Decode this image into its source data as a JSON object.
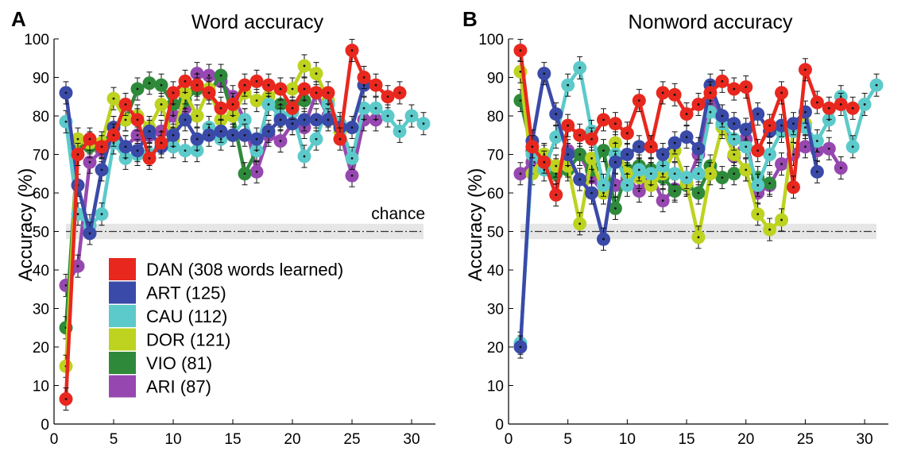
{
  "figure": {
    "legend_colors": {
      "DAN": "#e8281e",
      "ART": "#3a4aa8",
      "CAU": "#5ccaca",
      "DOR": "#bdd31f",
      "VIO": "#2e8a3a",
      "ARI": "#9648b0"
    },
    "legend": [
      {
        "id": "DAN",
        "label": "DAN (308 words learned)"
      },
      {
        "id": "ART",
        "label": "ART (125)"
      },
      {
        "id": "CAU",
        "label": "CAU (112)"
      },
      {
        "id": "DOR",
        "label": "DOR (121)"
      },
      {
        "id": "VIO",
        "label": "VIO (81)"
      },
      {
        "id": "ARI",
        "label": "ARI (87)"
      }
    ],
    "chance_label": "chance"
  },
  "chart_data": [
    {
      "type": "line",
      "panel": "A",
      "title": "Word accuracy",
      "xlabel": "",
      "ylabel": "Accuracy (%)",
      "xlim": [
        0,
        32
      ],
      "ylim": [
        0,
        100
      ],
      "xticks": [
        0,
        5,
        10,
        15,
        20,
        25,
        30
      ],
      "yticks": [
        0,
        10,
        20,
        30,
        40,
        50,
        60,
        70,
        80,
        90,
        100
      ],
      "chance": {
        "value": 50,
        "band": [
          48,
          52
        ]
      },
      "series": [
        {
          "id": "DAN",
          "x": [
            1,
            2,
            3,
            4,
            5,
            6,
            7,
            8,
            9,
            10,
            11,
            12,
            13,
            14,
            15,
            16,
            17,
            18,
            19,
            20,
            21,
            22,
            23,
            24,
            25,
            26,
            27,
            28,
            29
          ],
          "y": [
            6.5,
            70,
            74,
            72,
            75,
            83,
            79,
            69,
            73,
            86,
            89,
            88,
            86,
            82,
            83,
            88,
            89,
            88,
            87,
            82,
            87,
            86,
            86,
            74,
            97,
            90,
            88,
            85,
            86
          ]
        },
        {
          "id": "ART",
          "x": [
            1,
            2,
            3,
            4,
            5,
            6,
            7,
            8,
            9,
            10,
            11,
            12,
            13,
            14,
            15,
            16,
            17,
            18,
            19,
            20,
            21,
            22,
            23,
            24,
            25,
            26
          ],
          "y": [
            86,
            62,
            49.5,
            66,
            77,
            72,
            71,
            76,
            72,
            75,
            79,
            74,
            75,
            76,
            75,
            75,
            74,
            76,
            79,
            78,
            79,
            79,
            79,
            77,
            77,
            88
          ]
        },
        {
          "id": "CAU",
          "x": [
            1,
            2,
            3,
            4,
            5,
            6,
            7,
            8,
            9,
            10,
            11,
            12,
            13,
            14,
            15,
            16,
            17,
            18,
            19,
            20,
            21,
            22,
            23,
            24,
            25,
            26,
            27,
            28,
            29,
            30,
            31
          ],
          "y": [
            78.5,
            54.5,
            51.5,
            54.5,
            73,
            69,
            70,
            70,
            73,
            72,
            71,
            71,
            77,
            74,
            75,
            79,
            71,
            83,
            80,
            81,
            69.5,
            74,
            83,
            78,
            69,
            82,
            82,
            80,
            76,
            80,
            78
          ]
        },
        {
          "id": "DOR",
          "x": [
            1,
            2,
            3,
            4,
            5,
            6,
            7,
            8,
            9,
            10,
            11,
            12,
            13,
            14,
            15,
            16,
            17,
            18,
            19,
            20,
            21,
            22,
            23,
            24
          ],
          "y": [
            15,
            74,
            73,
            73,
            84.5,
            79,
            80,
            77,
            83,
            74,
            86,
            80,
            87,
            79,
            80,
            86,
            84,
            85,
            87,
            87,
            93,
            91,
            84,
            76
          ]
        },
        {
          "id": "VIO",
          "x": [
            1,
            2,
            3,
            4,
            5,
            6,
            7,
            8,
            9,
            10,
            11,
            12,
            13,
            14,
            15,
            16,
            17,
            18,
            19,
            20,
            21
          ],
          "y": [
            25,
            72,
            72,
            72,
            77,
            79,
            87,
            88.5,
            88,
            83,
            84,
            87,
            86,
            90.5,
            80,
            65,
            71,
            83,
            83,
            82,
            84
          ]
        },
        {
          "id": "ARI",
          "x": [
            1,
            2,
            3,
            4,
            5,
            6,
            7,
            8,
            9,
            10,
            11,
            12,
            13,
            14,
            15,
            16,
            17,
            18,
            19,
            20,
            21,
            22,
            23,
            24,
            25,
            26,
            27
          ],
          "y": [
            36,
            41,
            68,
            71,
            73,
            72,
            75,
            75,
            76,
            80,
            82,
            91,
            90.5,
            89,
            85,
            79,
            65.5,
            75,
            73.5,
            78,
            77,
            86,
            80,
            76,
            64.5,
            79,
            79
          ]
        }
      ]
    },
    {
      "type": "line",
      "panel": "B",
      "title": "Nonword accuracy",
      "xlabel": "",
      "ylabel": "Accuracy (%)",
      "xlim": [
        0,
        32
      ],
      "ylim": [
        0,
        100
      ],
      "xticks": [
        0,
        5,
        10,
        15,
        20,
        25,
        30
      ],
      "yticks": [
        0,
        10,
        20,
        30,
        40,
        50,
        60,
        70,
        80,
        90,
        100
      ],
      "chance": {
        "value": 50,
        "band": [
          48,
          52
        ]
      },
      "series": [
        {
          "id": "DAN",
          "x": [
            1,
            2,
            3,
            4,
            5,
            6,
            7,
            8,
            9,
            10,
            11,
            12,
            13,
            14,
            15,
            16,
            17,
            18,
            19,
            20,
            21,
            22,
            23,
            24,
            25,
            26,
            27,
            28,
            29
          ],
          "y": [
            97,
            72,
            68,
            59.5,
            77.5,
            75,
            74,
            79,
            78,
            75.5,
            84,
            72,
            86,
            85.5,
            80.5,
            83,
            86,
            89,
            87,
            87.5,
            71,
            77.5,
            86,
            61.5,
            92,
            83.5,
            82,
            83,
            82
          ]
        },
        {
          "id": "ART",
          "x": [
            1,
            2,
            3,
            4,
            5,
            6,
            7,
            8,
            9,
            10,
            11,
            12,
            13,
            14,
            15,
            16,
            17,
            18,
            19,
            20,
            21,
            22,
            23,
            24,
            25,
            26
          ],
          "y": [
            20,
            73.5,
            91,
            80.5,
            70,
            63.5,
            60,
            48,
            68,
            70,
            72,
            72,
            70,
            73,
            74.5,
            71.5,
            88,
            80,
            78,
            76.5,
            80.5,
            76,
            77.5,
            78,
            81,
            65.5
          ]
        },
        {
          "id": "CAU",
          "x": [
            1,
            2,
            3,
            4,
            5,
            6,
            7,
            8,
            9,
            10,
            11,
            12,
            13,
            14,
            15,
            16,
            17,
            18,
            19,
            20,
            21,
            22,
            23,
            24,
            25,
            26,
            27,
            28,
            29,
            30,
            31
          ],
          "y": [
            21,
            70,
            66,
            74.5,
            88,
            92.5,
            76,
            62,
            70,
            62,
            66,
            65,
            67,
            65,
            64,
            65,
            81,
            78,
            74,
            72,
            62,
            70,
            76,
            76,
            77,
            73.5,
            79,
            85,
            72,
            83,
            88
          ]
        },
        {
          "id": "DOR",
          "x": [
            1,
            2,
            3,
            4,
            5,
            6,
            7,
            8,
            9,
            10,
            11,
            12,
            13,
            14,
            15,
            16,
            17,
            18,
            19,
            20,
            21,
            22,
            23,
            24,
            25
          ],
          "y": [
            91.5,
            65,
            70,
            67,
            67,
            52,
            69,
            60,
            73,
            65,
            64,
            62,
            65,
            71,
            62.5,
            48.5,
            65,
            77,
            70,
            66,
            54.5,
            50.5,
            53,
            76,
            78
          ]
        },
        {
          "id": "VIO",
          "x": [
            1,
            2,
            3,
            4,
            5,
            6,
            7,
            8,
            9,
            10,
            11,
            12,
            13,
            14,
            15,
            16,
            17,
            18,
            19,
            20,
            21,
            22
          ],
          "y": [
            84,
            71,
            69.5,
            65,
            66,
            70,
            66,
            71,
            56,
            66,
            67,
            66,
            64,
            60.5,
            62,
            60,
            67,
            64,
            65,
            66,
            64,
            62.5
          ]
        },
        {
          "id": "ARI",
          "x": [
            1,
            2,
            3,
            4,
            5,
            6,
            7,
            8,
            9,
            10,
            11,
            12,
            13,
            14,
            15,
            16,
            17,
            18,
            19,
            20,
            21,
            22,
            23,
            24,
            25,
            26,
            27,
            28
          ],
          "y": [
            65,
            68,
            68,
            66,
            71,
            70,
            64,
            60,
            62,
            64,
            60.5,
            65,
            58,
            61,
            62,
            70,
            84,
            80,
            69.5,
            74,
            60,
            62,
            67.5,
            70,
            72,
            71,
            71.5,
            66.5
          ]
        }
      ]
    }
  ]
}
